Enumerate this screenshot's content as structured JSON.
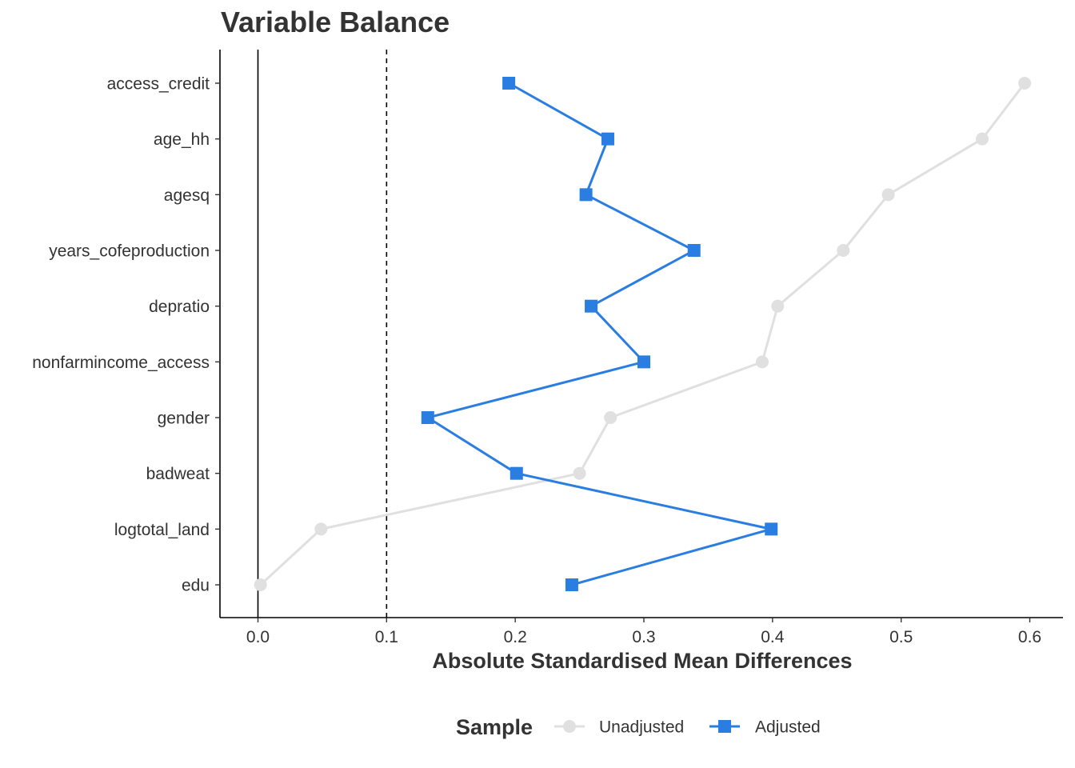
{
  "chart_data": {
    "type": "line",
    "title": "Variable Balance",
    "xlabel": "Absolute Standardised Mean Differences",
    "ylabel": "",
    "xlim": [
      -0.03,
      0.625
    ],
    "x_ticks": [
      0.0,
      0.1,
      0.2,
      0.3,
      0.4,
      0.5,
      0.6
    ],
    "x_tick_labels": [
      "0.0",
      "0.1",
      "0.2",
      "0.3",
      "0.4",
      "0.5",
      "0.6"
    ],
    "categories": [
      "access_credit",
      "age_hh",
      "agesq",
      "years_cofeproduction",
      "depratio",
      "nonfarmincome_access",
      "gender",
      "badweat",
      "logtotal_land",
      "edu"
    ],
    "reference_lines": [
      {
        "x": 0.0,
        "style": "solid"
      },
      {
        "x": 0.1,
        "style": "dashed"
      }
    ],
    "series": [
      {
        "name": "Unadjusted",
        "color": "#e0e0e0",
        "marker": "circle",
        "values": [
          0.596,
          0.563,
          0.49,
          0.455,
          0.404,
          0.392,
          0.274,
          0.25,
          0.049,
          0.002
        ]
      },
      {
        "name": "Adjusted",
        "color": "#2a7de1",
        "marker": "square",
        "values": [
          0.195,
          0.272,
          0.255,
          0.339,
          0.259,
          0.3,
          0.132,
          0.201,
          0.399,
          0.244
        ]
      }
    ],
    "legend": {
      "title": "Sample",
      "position": "bottom"
    },
    "grid": false
  }
}
